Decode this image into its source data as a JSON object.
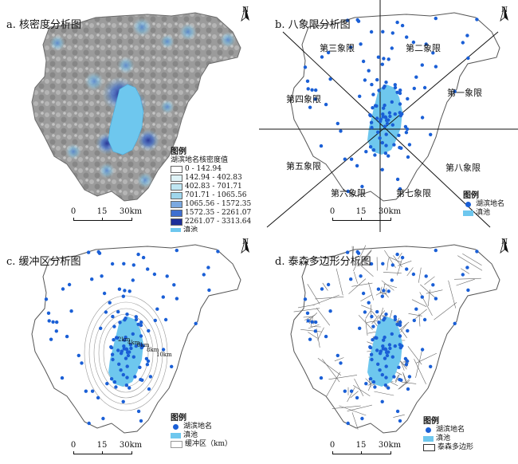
{
  "panels": {
    "a": {
      "title": "a. 核密度分析图",
      "legend": {
        "title": "图例",
        "subtitle": "湖滨地名核密度值",
        "classes": [
          {
            "label": "0 - 142.94",
            "color": "#ffffff"
          },
          {
            "label": "142.94 - 402.83",
            "color": "#dff3f7"
          },
          {
            "label": "402.83 - 701.71",
            "color": "#bfe6f2"
          },
          {
            "label": "701.71 - 1065.56",
            "color": "#9fd6ec"
          },
          {
            "label": "1065.56 - 1572.35",
            "color": "#7aa8e0"
          },
          {
            "label": "1572.35 - 2261.07",
            "color": "#3f6fd0"
          },
          {
            "label": "2261.07 - 3313.64",
            "color": "#1d2f9a"
          }
        ],
        "lake_label": "滇池"
      }
    },
    "b": {
      "title": "b. 八象限分析图",
      "quadrants": [
        "第一象限",
        "第二象限",
        "第三象限",
        "第四象限",
        "第五象限",
        "第六象限",
        "第七象限",
        "第八象限"
      ],
      "legend": {
        "title": "图例",
        "points_label": "湖滨地名",
        "lake_label": "滇池"
      }
    },
    "c": {
      "title": "c. 缓冲区分析图",
      "buffer_labels": [
        "2km",
        "4km",
        "6km",
        "8km",
        "10km"
      ],
      "legend": {
        "title": "图例",
        "points_label": "湖滨地名",
        "lake_label": "滇池",
        "buffer_label": "缓冲区（km）"
      }
    },
    "d": {
      "title": "d. 泰森多边形分析图",
      "legend": {
        "title": "图例",
        "points_label": "湖滨地名",
        "lake_label": "滇池",
        "polygon_label": "泰森多边形"
      }
    }
  },
  "scale_bar": {
    "ticks": [
      "0",
      "15",
      "30km"
    ]
  },
  "north_label": "N",
  "colors": {
    "lake": "#6ec7ee",
    "points": "#1a5fd6",
    "boundary": "#555555",
    "terrain": "#9a9a9a"
  }
}
